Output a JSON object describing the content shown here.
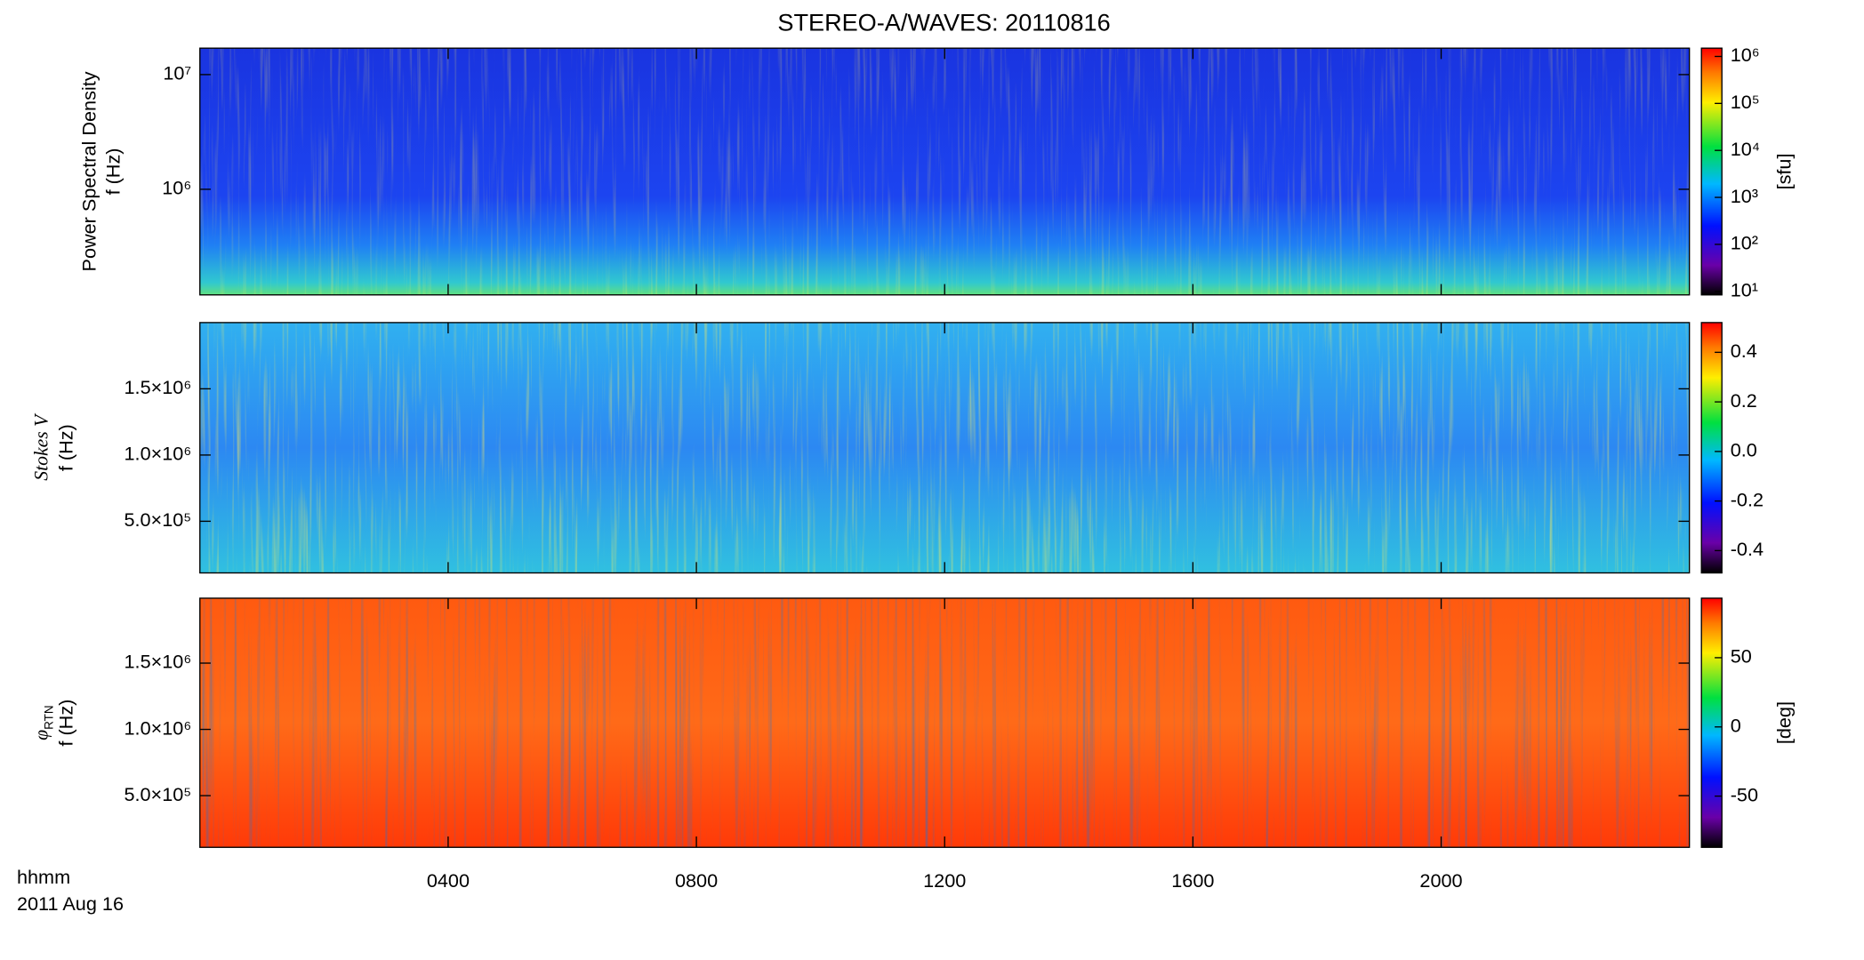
{
  "chart_data": [
    {
      "type": "heatmap",
      "title": "STEREO-A/WAVES: 20110816",
      "ylabel": "Power Spectral Density",
      "ylabel2": "f (Hz)",
      "yscale": "log",
      "ylim": [
        120000,
        17000000
      ],
      "yticks": [
        {
          "value": 1000000,
          "label": "10⁶"
        },
        {
          "value": 10000000,
          "label": "10⁷"
        }
      ],
      "xlim": [
        0,
        24
      ],
      "colormap": "rainbow",
      "colorbar": {
        "scale": "log",
        "lim": [
          8.4,
          1500000
        ],
        "label": "[sfu]",
        "ticks": [
          {
            "value": 10,
            "label": "10¹"
          },
          {
            "value": 100,
            "label": "10²"
          },
          {
            "value": 1000,
            "label": "10³"
          },
          {
            "value": 10000,
            "label": "10⁴"
          },
          {
            "value": 100000,
            "label": "10⁵"
          },
          {
            "value": 1000000,
            "label": "10⁶"
          }
        ]
      }
    },
    {
      "type": "heatmap",
      "ylabel": "Stokes V",
      "ylabel2": "f (Hz)",
      "yscale": "linear",
      "ylim": [
        110000,
        2000000
      ],
      "yticks": [
        {
          "value": 500000,
          "label": "5.0×10⁵"
        },
        {
          "value": 1000000,
          "label": "1.0×10⁶"
        },
        {
          "value": 1500000,
          "label": "1.5×10⁶"
        }
      ],
      "xlim": [
        0,
        24
      ],
      "colormap": "rainbow",
      "colorbar": {
        "scale": "linear",
        "lim": [
          -0.49,
          0.52
        ],
        "ticks": [
          0.4,
          0.2,
          {
            "value": 0,
            "label": "0.0"
          },
          -0.2,
          -0.4
        ]
      }
    },
    {
      "type": "heatmap",
      "ylabel": "φ",
      "ylabel_sub": "RTN",
      "ylabel2": "f (Hz)",
      "yscale": "linear",
      "ylim": [
        110000,
        1990000
      ],
      "yticks": [
        {
          "value": 500000,
          "label": "5.0×10⁵"
        },
        {
          "value": 1000000,
          "label": "1.0×10⁶"
        },
        {
          "value": 1500000,
          "label": "1.5×10⁶"
        }
      ],
      "xlim": [
        0,
        24
      ],
      "xlabel": "hhmm",
      "xlabel2": "2011 Aug 16",
      "xticks": [
        {
          "value": 4,
          "label": "0400"
        },
        {
          "value": 8,
          "label": "0800"
        },
        {
          "value": 12,
          "label": "1200"
        },
        {
          "value": 16,
          "label": "1600"
        },
        {
          "value": 20,
          "label": "2000"
        }
      ],
      "colormap": "rainbow",
      "colorbar": {
        "scale": "linear",
        "lim": [
          -87,
          93
        ],
        "label": "[deg]",
        "ticks": [
          50,
          0,
          -50
        ]
      }
    }
  ]
}
